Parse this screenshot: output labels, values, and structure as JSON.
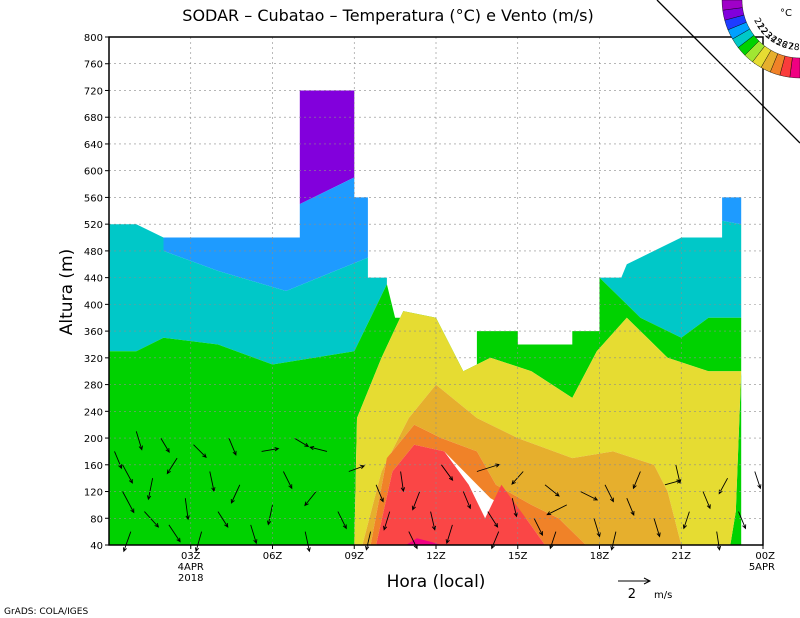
{
  "chart_data": {
    "type": "heatmap",
    "title": "SODAR – Cubatao – Temperatura (°C) e Vento (m/s)",
    "xlabel": "Hora (local)",
    "ylabel": "Altura (m)",
    "ylim": [
      40,
      800
    ],
    "yticks": [
      40,
      80,
      120,
      160,
      200,
      240,
      280,
      320,
      360,
      400,
      440,
      480,
      520,
      560,
      600,
      640,
      680,
      720,
      760,
      800
    ],
    "xlim": [
      0,
      24
    ],
    "xticks": [
      {
        "x": 3,
        "label": "03Z",
        "sub1": "4APR",
        "sub2": "2018"
      },
      {
        "x": 6,
        "label": "06Z",
        "sub1": "",
        "sub2": ""
      },
      {
        "x": 9,
        "label": "09Z",
        "sub1": "",
        "sub2": ""
      },
      {
        "x": 12,
        "label": "12Z",
        "sub1": "",
        "sub2": ""
      },
      {
        "x": 15,
        "label": "15Z",
        "sub1": "",
        "sub2": ""
      },
      {
        "x": 18,
        "label": "18Z",
        "sub1": "",
        "sub2": ""
      },
      {
        "x": 21,
        "label": "21Z",
        "sub1": "",
        "sub2": ""
      },
      {
        "x": 24,
        "label": "00Z",
        "sub1": "5APR",
        "sub2": ""
      }
    ],
    "grid": true,
    "colorbar": {
      "unit": "°C",
      "levels": [
        "21",
        "22",
        "23",
        "24",
        "25",
        "26",
        "27",
        "28"
      ],
      "colors": [
        "#a000c8",
        "#8200dc",
        "#1e3cff",
        "#00a0ff",
        "#00c8c8",
        "#00d200",
        "#a0e632",
        "#e6dc32",
        "#e6af2d",
        "#f08228",
        "#fa3c3c",
        "#f00082"
      ]
    },
    "bands": [
      {
        "level": "<=21",
        "color": "#8200dc",
        "polys": [
          [
            [
              7,
              720
            ],
            [
              9,
              720
            ],
            [
              9,
              590
            ],
            [
              7,
              550
            ]
          ]
        ]
      },
      {
        "level": "21-22",
        "color": "#1e9bff",
        "polys": [
          [
            [
              2,
              500
            ],
            [
              7,
              500
            ],
            [
              7,
              550
            ],
            [
              9,
              590
            ],
            [
              9,
              560
            ],
            [
              9.5,
              560
            ],
            [
              9.5,
              470
            ],
            [
              8.3,
              450
            ],
            [
              6.5,
              420
            ],
            [
              4,
              450
            ],
            [
              2,
              480
            ]
          ],
          [
            [
              22.5,
              560
            ],
            [
              23.2,
              560
            ],
            [
              23.2,
              520
            ],
            [
              22.5,
              525
            ]
          ]
        ]
      },
      {
        "level": "22-23",
        "color": "#00c8c8",
        "polys": [
          [
            [
              0,
              520
            ],
            [
              1,
              520
            ],
            [
              2,
              500
            ],
            [
              2,
              480
            ],
            [
              4,
              450
            ],
            [
              6.5,
              420
            ],
            [
              8.3,
              450
            ],
            [
              9.5,
              470
            ],
            [
              9.5,
              440
            ],
            [
              10.2,
              440
            ],
            [
              10.2,
              430
            ],
            [
              9,
              330
            ],
            [
              6,
              310
            ],
            [
              4,
              340
            ],
            [
              2,
              350
            ],
            [
              1,
              330
            ],
            [
              0,
              330
            ]
          ],
          [
            [
              18,
              440
            ],
            [
              18.8,
              440
            ],
            [
              19,
              460
            ],
            [
              20,
              480
            ],
            [
              21,
              500
            ],
            [
              22.5,
              500
            ],
            [
              22.5,
              525
            ],
            [
              23.2,
              520
            ],
            [
              23.2,
              380
            ],
            [
              22,
              380
            ],
            [
              21,
              350
            ],
            [
              19.5,
              380
            ],
            [
              18,
              440
            ]
          ]
        ]
      },
      {
        "level": "23-24",
        "color": "#00d200",
        "polys": [
          [
            [
              0,
              330
            ],
            [
              1,
              330
            ],
            [
              2,
              350
            ],
            [
              4,
              340
            ],
            [
              6,
              310
            ],
            [
              9,
              330
            ],
            [
              10.2,
              430
            ],
            [
              10.5,
              380
            ],
            [
              11.5,
              380
            ],
            [
              11.5,
              300
            ],
            [
              13.5,
              300
            ],
            [
              13.5,
              360
            ],
            [
              15,
              360
            ],
            [
              15,
              340
            ],
            [
              17,
              340
            ],
            [
              17,
              360
            ],
            [
              18,
              360
            ],
            [
              18,
              440
            ],
            [
              19.5,
              380
            ],
            [
              21,
              350
            ],
            [
              22,
              380
            ],
            [
              23.2,
              380
            ],
            [
              23.2,
              40
            ],
            [
              22.8,
              40
            ],
            [
              23,
              90
            ],
            [
              23.2,
              300
            ],
            [
              22,
              300
            ],
            [
              20.5,
              320
            ],
            [
              19,
              380
            ],
            [
              17.9,
              330
            ],
            [
              17,
              260
            ],
            [
              15.5,
              300
            ],
            [
              14,
              320
            ],
            [
              13,
              300
            ],
            [
              12,
              380
            ],
            [
              10.8,
              390
            ],
            [
              10,
              320
            ],
            [
              9.1,
              230
            ],
            [
              9,
              40
            ],
            [
              0,
              40
            ]
          ]
        ]
      },
      {
        "level": "24-25",
        "color": "#e6dc32",
        "polys": [
          [
            [
              9,
              40
            ],
            [
              9.1,
              230
            ],
            [
              10,
              320
            ],
            [
              10.8,
              390
            ],
            [
              12,
              380
            ],
            [
              13,
              300
            ],
            [
              14,
              320
            ],
            [
              15.5,
              300
            ],
            [
              17,
              260
            ],
            [
              17.9,
              330
            ],
            [
              19,
              380
            ],
            [
              20.5,
              320
            ],
            [
              22,
              300
            ],
            [
              23.2,
              300
            ],
            [
              23,
              90
            ],
            [
              22.8,
              40
            ],
            [
              21,
              40
            ],
            [
              20.5,
              120
            ],
            [
              20,
              160
            ],
            [
              18.5,
              180
            ],
            [
              17,
              170
            ],
            [
              15,
              200
            ],
            [
              13.5,
              230
            ],
            [
              12,
              280
            ],
            [
              11,
              230
            ],
            [
              10,
              150
            ],
            [
              9.3,
              40
            ]
          ]
        ]
      },
      {
        "level": "25-26",
        "color": "#e6af2d",
        "polys": [
          [
            [
              9.3,
              40
            ],
            [
              10,
              150
            ],
            [
              11,
              230
            ],
            [
              12,
              280
            ],
            [
              13.5,
              230
            ],
            [
              15,
              200
            ],
            [
              17,
              170
            ],
            [
              18.5,
              180
            ],
            [
              20,
              160
            ],
            [
              20.5,
              120
            ],
            [
              21,
              40
            ],
            [
              17.5,
              40
            ],
            [
              16.5,
              80
            ],
            [
              15.5,
              100
            ],
            [
              14.2,
              130
            ],
            [
              13.5,
              180
            ],
            [
              12.2,
              200
            ],
            [
              11.2,
              220
            ],
            [
              10.2,
              170
            ],
            [
              9.6,
              40
            ]
          ]
        ]
      },
      {
        "level": "26-27",
        "color": "#f08228",
        "polys": [
          [
            [
              9.6,
              40
            ],
            [
              10.2,
              170
            ],
            [
              11.2,
              220
            ],
            [
              12.2,
              200
            ],
            [
              13.5,
              180
            ],
            [
              14.2,
              130
            ],
            [
              15.5,
              100
            ],
            [
              16.5,
              80
            ],
            [
              17.5,
              40
            ],
            [
              16,
              40
            ],
            [
              15.3,
              80
            ],
            [
              14,
              110
            ],
            [
              12.3,
              180
            ],
            [
              11.2,
              190
            ],
            [
              10.4,
              150
            ],
            [
              9.8,
              40
            ]
          ]
        ]
      },
      {
        "level": "27-28",
        "color": "#fa4646",
        "polys": [
          [
            [
              9.8,
              40
            ],
            [
              10.4,
              150
            ],
            [
              11.2,
              190
            ],
            [
              12.3,
              180
            ],
            [
              13.2,
              130
            ],
            [
              13.8,
              80
            ],
            [
              14.4,
              130
            ],
            [
              15.3,
              80
            ],
            [
              16,
              40
            ]
          ]
        ]
      },
      {
        "level": ">28",
        "color": "#f00082",
        "polys": [
          [
            [
              10.9,
              40
            ],
            [
              11.3,
              50
            ],
            [
              11.8,
              45
            ],
            [
              12.2,
              40
            ]
          ]
        ]
      }
    ],
    "wind_vectors": [
      [
        0.2,
        180,
        0.5,
        -1.2
      ],
      [
        0.5,
        120,
        0.8,
        -1.5
      ],
      [
        0.8,
        60,
        -0.5,
        -1.4
      ],
      [
        0.5,
        160,
        0.7,
        -1.3
      ],
      [
        1,
        210,
        0.4,
        -1.3
      ],
      [
        1.3,
        90,
        1.0,
        -1.1
      ],
      [
        1.6,
        140,
        -0.3,
        -1.5
      ],
      [
        1.9,
        200,
        0.6,
        -1.0
      ],
      [
        2.2,
        70,
        0.8,
        -1.2
      ],
      [
        2.5,
        170,
        -0.7,
        -1.1
      ],
      [
        2.8,
        110,
        0.2,
        -1.5
      ],
      [
        3.1,
        190,
        0.9,
        -0.9
      ],
      [
        3.4,
        60,
        -0.4,
        -1.4
      ],
      [
        3.7,
        150,
        0.3,
        -1.4
      ],
      [
        4,
        90,
        0.7,
        -1.1
      ],
      [
        4.4,
        200,
        0.5,
        -1.2
      ],
      [
        4.8,
        130,
        -0.6,
        -1.3
      ],
      [
        5.2,
        70,
        0.4,
        -1.3
      ],
      [
        5.6,
        180,
        1.2,
        0.2
      ],
      [
        6,
        100,
        -0.3,
        -1.4
      ],
      [
        6.4,
        150,
        0.6,
        -1.2
      ],
      [
        6.8,
        200,
        1.0,
        -0.6
      ],
      [
        7.2,
        60,
        0.3,
        -1.4
      ],
      [
        7.6,
        120,
        -0.8,
        -1.0
      ],
      [
        8,
        180,
        -1.2,
        0.3
      ],
      [
        8.4,
        90,
        0.6,
        -1.2
      ],
      [
        8.8,
        150,
        1.1,
        0.4
      ],
      [
        9.6,
        60,
        -0.3,
        -1.3
      ],
      [
        9.8,
        130,
        0.5,
        -1.2
      ],
      [
        10.3,
        90,
        -0.4,
        -1.3
      ],
      [
        10.7,
        150,
        0.2,
        -1.4
      ],
      [
        11,
        60,
        0.6,
        -1.2
      ],
      [
        11.4,
        120,
        -0.5,
        -1.3
      ],
      [
        11.8,
        90,
        0.3,
        -1.3
      ],
      [
        12.2,
        160,
        0.8,
        -1.1
      ],
      [
        12.6,
        70,
        -0.4,
        -1.3
      ],
      [
        13,
        120,
        0.5,
        -1.2
      ],
      [
        13.5,
        150,
        1.6,
        0.5
      ],
      [
        13.9,
        90,
        0.7,
        -1.1
      ],
      [
        14.3,
        60,
        -0.5,
        -1.2
      ],
      [
        14.8,
        110,
        0.3,
        -1.3
      ],
      [
        15.2,
        150,
        -0.8,
        -0.9
      ],
      [
        15.6,
        80,
        0.6,
        -1.2
      ],
      [
        16,
        130,
        1.0,
        -0.8
      ],
      [
        16.4,
        60,
        -0.4,
        -1.2
      ],
      [
        16.8,
        100,
        -1.4,
        -0.7
      ],
      [
        17.3,
        120,
        1.2,
        -0.6
      ],
      [
        17.8,
        80,
        0.4,
        -1.3
      ],
      [
        18.2,
        130,
        0.6,
        -1.2
      ],
      [
        18.6,
        60,
        -0.3,
        -1.3
      ],
      [
        19,
        110,
        0.5,
        -1.2
      ],
      [
        19.5,
        150,
        -0.5,
        -1.2
      ],
      [
        20,
        80,
        0.4,
        -1.3
      ],
      [
        20.4,
        130,
        1.1,
        0.3
      ],
      [
        20.8,
        160,
        0.3,
        -1.3
      ],
      [
        21.3,
        90,
        -0.4,
        -1.2
      ],
      [
        21.8,
        120,
        0.5,
        -1.2
      ],
      [
        22.3,
        60,
        0.2,
        -1.3
      ],
      [
        22.7,
        140,
        -0.6,
        -1.1
      ],
      [
        23.1,
        90,
        0.5,
        -1.2
      ],
      [
        23.7,
        150,
        0.4,
        -1.2
      ]
    ],
    "wind_key": {
      "value": 2,
      "unit": "m/s"
    }
  },
  "credit": "GrADS: COLA/IGES"
}
